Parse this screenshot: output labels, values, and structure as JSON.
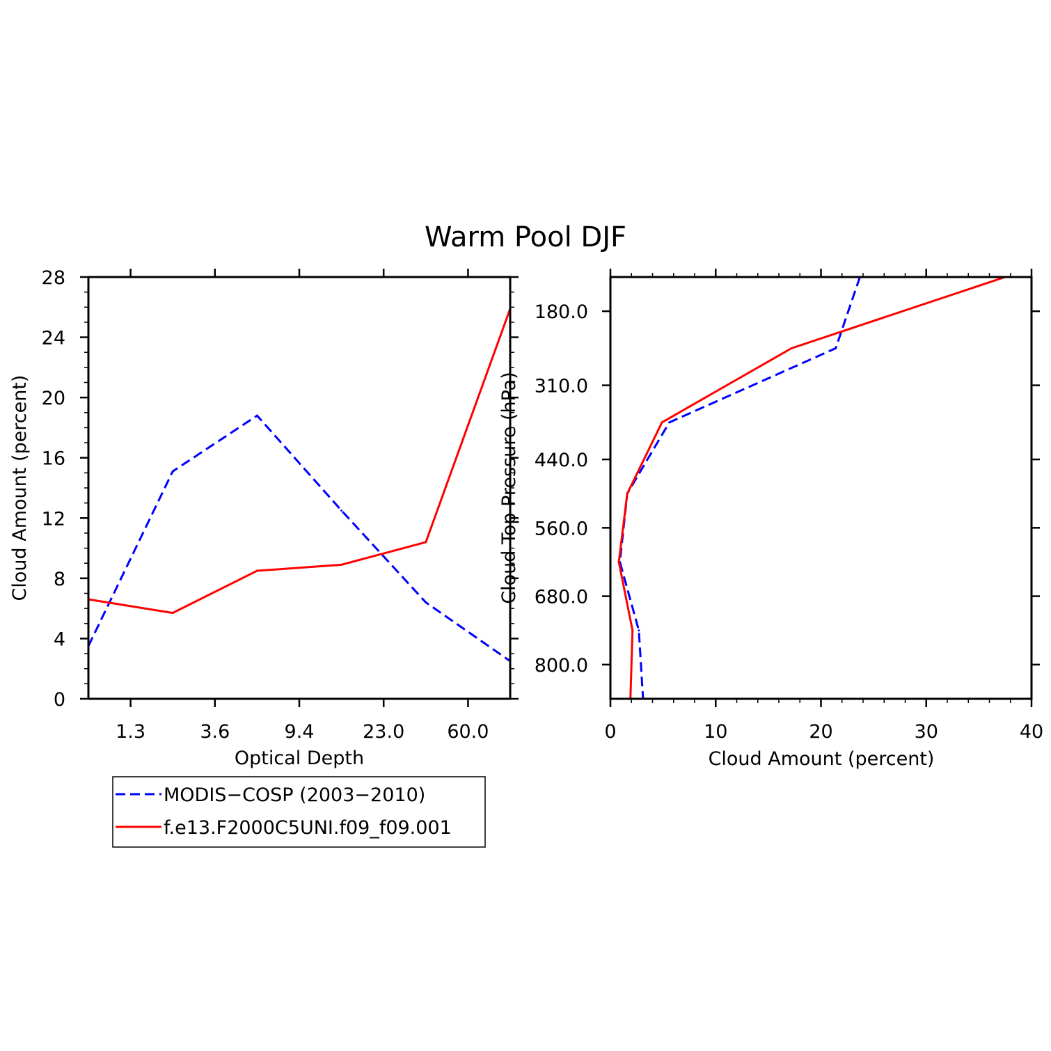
{
  "title": "Warm Pool DJF",
  "legend": {
    "position": "below-left",
    "entries": [
      {
        "label": "MODIS−COSP (2003−2010)",
        "color": "#0000ff",
        "dash": "dashed"
      },
      {
        "label": "f.e13.F2000C5UNI.f09_f09.001",
        "color": "#ff0000",
        "dash": "solid"
      }
    ]
  },
  "chart_data": [
    {
      "type": "line",
      "xlabel": "Optical Depth",
      "ylabel": "Cloud Amount (percent)",
      "x": [
        0,
        1,
        2,
        3,
        4,
        5
      ],
      "xlim": [
        0,
        5
      ],
      "xticks": [
        0.5,
        1.5,
        2.5,
        3.5,
        4.5
      ],
      "xtick_labels": [
        "1.3",
        "3.6",
        "9.4",
        "23.0",
        "60.0"
      ],
      "ylim": [
        0,
        28
      ],
      "yticks": [
        0,
        4,
        8,
        12,
        16,
        20,
        24,
        28
      ],
      "ytick_labels": [
        "0",
        "4",
        "8",
        "12",
        "16",
        "20",
        "24",
        "28"
      ],
      "grid": false,
      "series": [
        {
          "name": "MODIS−COSP (2003−2010)",
          "color": "#0000ff",
          "dash": "dashed",
          "values": [
            3.5,
            15.1,
            18.8,
            12.5,
            6.4,
            2.5
          ]
        },
        {
          "name": "f.e13.F2000C5UNI.f09_f09.001",
          "color": "#ff0000",
          "dash": "solid",
          "values": [
            6.6,
            5.7,
            8.5,
            8.9,
            10.4,
            25.9
          ]
        }
      ]
    },
    {
      "type": "line",
      "orientation": "horizontal",
      "xlabel": "Cloud Amount (percent)",
      "ylabel": "Cloud Top Pressure (hPa)",
      "xlim": [
        0,
        40
      ],
      "xticks": [
        0,
        10,
        20,
        30,
        40
      ],
      "xtick_labels": [
        "0",
        "10",
        "20",
        "30",
        "40"
      ],
      "ylim": [
        120,
        860
      ],
      "y_inverted": true,
      "y": [
        120,
        245,
        375,
        500,
        620,
        740,
        860
      ],
      "yticks": [
        180,
        310,
        440,
        560,
        680,
        800
      ],
      "ytick_labels": [
        "180.0",
        "310.0",
        "440.0",
        "560.0",
        "680.0",
        "800.0"
      ],
      "grid": false,
      "series": [
        {
          "name": "MODIS−COSP (2003−2010)",
          "color": "#0000ff",
          "dash": "dashed",
          "values": [
            23.7,
            21.4,
            5.6,
            1.6,
            0.9,
            2.7,
            3.1
          ]
        },
        {
          "name": "f.e13.F2000C5UNI.f09_f09.001",
          "color": "#ff0000",
          "dash": "solid",
          "values": [
            37.5,
            17.2,
            4.9,
            1.6,
            0.8,
            2.1,
            1.9
          ]
        }
      ]
    }
  ]
}
